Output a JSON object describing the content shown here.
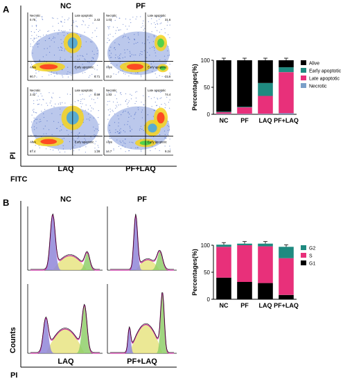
{
  "panel_labels": {
    "a": "A",
    "b": "B"
  },
  "flow": {
    "col_labels": [
      "NC",
      "PF"
    ],
    "bottom_labels": [
      "LAQ",
      "PF+LAQ"
    ],
    "y_axis_label": "PI",
    "x_axis_label": "FITC",
    "quadrant_labels": {
      "necrotic": "Necrotic",
      "late": "Late apoptotic",
      "alive": "Alive",
      "early": "Early apoptotic"
    },
    "plots": [
      {
        "necrotic": "0.75",
        "late": "2.43",
        "alive": "90.7",
        "early": "6.71"
      },
      {
        "necrotic": "1.03",
        "late": "31.6",
        "alive": "44.2",
        "early": "22.6"
      },
      {
        "necrotic": "2.42",
        "late": "8.50",
        "alive": "87.4",
        "early": "1.28"
      },
      {
        "necrotic": "1.83",
        "late": "74.4",
        "alive": "14.7",
        "early": "9.24"
      }
    ]
  },
  "histo": {
    "col_labels": [
      "NC",
      "PF"
    ],
    "bottom_labels": [
      "LAQ",
      "PF+LAQ"
    ],
    "y_axis_label": "Counts",
    "x_axis_label": "PI"
  },
  "colors": {
    "alive": "#000000",
    "early": "#1f8a80",
    "late": "#e8307a",
    "necrotic": "#7a9fc8",
    "g1": "#000000",
    "s": "#e8307a",
    "g2": "#1f8a80"
  },
  "chart_data": [
    {
      "type": "bar",
      "stacked": true,
      "categories": [
        "NC",
        "PF",
        "LAQ",
        "PF+LAQ"
      ],
      "ylabel": "Percentages(%)",
      "ylim": [
        0,
        100
      ],
      "yticks": [
        "0",
        "50",
        "100"
      ],
      "legend_position": "right",
      "series": [
        {
          "name": "Necrotic",
          "values": [
            1,
            1,
            1,
            2
          ]
        },
        {
          "name": "Late apoptotic",
          "values": [
            3,
            12,
            33,
            76
          ]
        },
        {
          "name": "Early apoptotic",
          "values": [
            1,
            1,
            24,
            9
          ]
        },
        {
          "name": "Alive",
          "values": [
            95,
            86,
            42,
            13
          ]
        }
      ]
    },
    {
      "type": "bar",
      "stacked": true,
      "categories": [
        "NC",
        "PF",
        "LAQ",
        "PF+LAQ"
      ],
      "ylabel": "Percentages(%)",
      "ylim": [
        0,
        100
      ],
      "yticks": [
        "0",
        "50",
        "100"
      ],
      "legend_position": "right",
      "series": [
        {
          "name": "G1",
          "values": [
            40,
            32,
            30,
            8
          ]
        },
        {
          "name": "S",
          "values": [
            57,
            68,
            68,
            68
          ]
        },
        {
          "name": "G2",
          "values": [
            4,
            3,
            5,
            21
          ]
        }
      ]
    }
  ]
}
